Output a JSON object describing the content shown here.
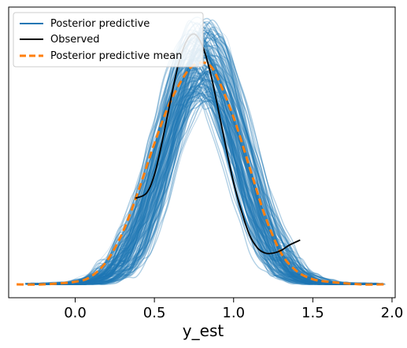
{
  "chart_data": {
    "type": "line",
    "xlabel": "y_est",
    "ylabel": "",
    "xlim": [
      -0.42,
      2.02
    ],
    "ylim": [
      0,
      1
    ],
    "xticks": [
      "0.0",
      "0.5",
      "1.0",
      "1.5",
      "2.0"
    ],
    "grid": false,
    "legend_position": "top-left",
    "colors": {
      "posterior_predictive": "#1f77b4",
      "observed": "#000000",
      "posterior_predictive_mean": "#ff7f0e"
    },
    "legend": [
      {
        "label": "Posterior predictive",
        "style": "solid",
        "color": "#1f77b4"
      },
      {
        "label": "Observed",
        "style": "solid",
        "color": "#000000"
      },
      {
        "label": "Posterior predictive mean",
        "style": "dashed",
        "color": "#ff7f0e"
      }
    ],
    "series": [
      {
        "name": "Observed",
        "x": [
          0.38,
          0.45,
          0.5,
          0.55,
          0.6,
          0.65,
          0.7,
          0.75,
          0.8,
          0.85,
          0.9,
          0.95,
          1.0,
          1.05,
          1.1,
          1.15,
          1.2,
          1.25,
          1.3,
          1.35,
          1.42
        ],
        "y": [
          0.33,
          0.35,
          0.42,
          0.55,
          0.7,
          0.84,
          0.93,
          0.96,
          0.92,
          0.82,
          0.68,
          0.53,
          0.39,
          0.28,
          0.19,
          0.14,
          0.12,
          0.12,
          0.13,
          0.15,
          0.17
        ]
      },
      {
        "name": "Posterior predictive mean",
        "x": [
          -0.37,
          -0.2,
          0.0,
          0.1,
          0.2,
          0.3,
          0.4,
          0.5,
          0.6,
          0.7,
          0.75,
          0.8,
          0.85,
          0.9,
          1.0,
          1.1,
          1.2,
          1.3,
          1.4,
          1.5,
          1.6,
          1.8,
          1.95
        ],
        "y": [
          0.0,
          0.0,
          0.01,
          0.03,
          0.09,
          0.2,
          0.36,
          0.54,
          0.7,
          0.81,
          0.84,
          0.85,
          0.84,
          0.79,
          0.64,
          0.45,
          0.26,
          0.12,
          0.05,
          0.02,
          0.01,
          0.0,
          0.0
        ]
      }
    ]
  }
}
